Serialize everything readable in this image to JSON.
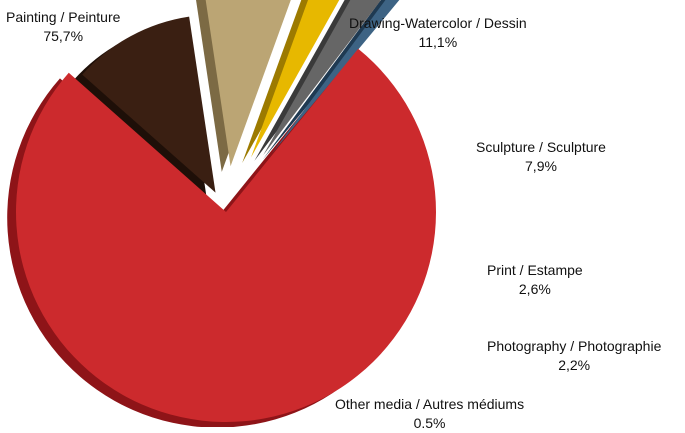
{
  "chart_data": {
    "type": "pie",
    "title": "",
    "exploded": true,
    "style": "3d",
    "slices": [
      {
        "label": "Painting / Peinture",
        "value_label": "75,7%",
        "value": 75.7,
        "color": "#cc2a2d",
        "side": "#8e1418"
      },
      {
        "label": "Drawing-Watercolor / Dessin",
        "value_label": "11,1%",
        "value": 11.1,
        "color": "#3a1f12",
        "side": "#1e0f08"
      },
      {
        "label": "Sculpture / Sculpture",
        "value_label": "7,9%",
        "value": 7.9,
        "color": "#bba574",
        "side": "#7c6a44"
      },
      {
        "label": "Print / Estampe",
        "value_label": "2,6%",
        "value": 2.6,
        "color": "#e7b800",
        "side": "#9c7a00"
      },
      {
        "label": "Photography / Photographie",
        "value_label": "2,2%",
        "value": 2.2,
        "color": "#666666",
        "side": "#3a3a3a"
      },
      {
        "label": "Other media / Autres médiums",
        "value_label": "0.5%",
        "value": 0.5,
        "color": "#3d6384",
        "side": "#1f3a52"
      }
    ]
  }
}
